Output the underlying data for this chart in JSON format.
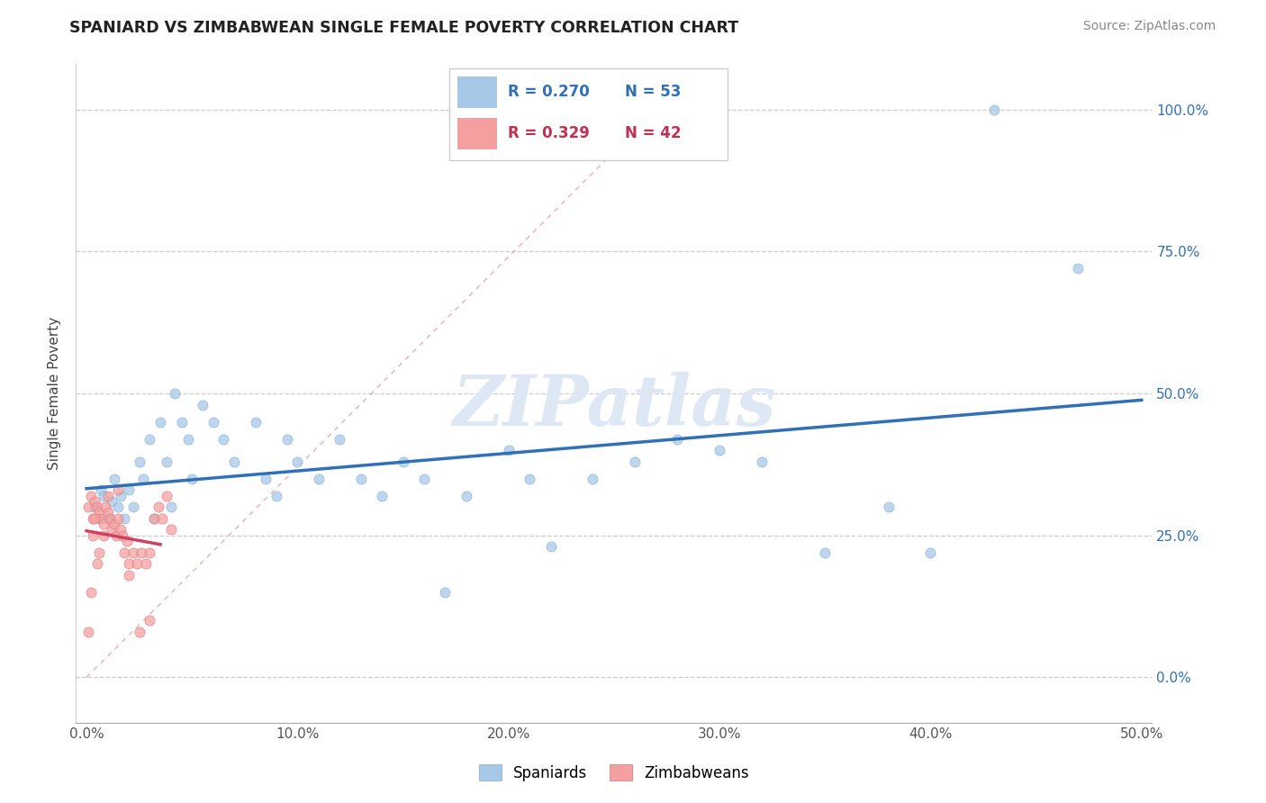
{
  "title": "SPANIARD VS ZIMBABWEAN SINGLE FEMALE POVERTY CORRELATION CHART",
  "source": "Source: ZipAtlas.com",
  "ylabel": "Single Female Poverty",
  "xlim": [
    -0.005,
    0.505
  ],
  "ylim": [
    -0.08,
    1.08
  ],
  "x_ticks": [
    0.0,
    0.1,
    0.2,
    0.3,
    0.4,
    0.5
  ],
  "x_tick_labels": [
    "0.0%",
    "10.0%",
    "20.0%",
    "30.0%",
    "40.0%",
    "50.0%"
  ],
  "y_ticks": [
    0.0,
    0.25,
    0.5,
    0.75,
    1.0
  ],
  "y_tick_labels": [
    "0.0%",
    "25.0%",
    "50.0%",
    "75.0%",
    "100.0%"
  ],
  "legend_r_blue": "R = 0.270",
  "legend_n_blue": "N = 53",
  "legend_r_pink": "R = 0.329",
  "legend_n_pink": "N = 42",
  "blue_color": "#a8c8e8",
  "pink_color": "#f4a0a0",
  "blue_line_color": "#3070b8",
  "pink_line_color": "#d04060",
  "diag_line_color": "#e8a0a0",
  "watermark_color": "#dde8f4",
  "spaniards_x": [
    0.004,
    0.006,
    0.007,
    0.008,
    0.01,
    0.012,
    0.013,
    0.015,
    0.016,
    0.018,
    0.02,
    0.022,
    0.025,
    0.027,
    0.03,
    0.032,
    0.035,
    0.038,
    0.04,
    0.042,
    0.045,
    0.048,
    0.05,
    0.055,
    0.06,
    0.065,
    0.07,
    0.08,
    0.085,
    0.09,
    0.095,
    0.1,
    0.11,
    0.12,
    0.13,
    0.14,
    0.15,
    0.16,
    0.17,
    0.18,
    0.2,
    0.21,
    0.22,
    0.24,
    0.26,
    0.28,
    0.3,
    0.32,
    0.35,
    0.38,
    0.4,
    0.43,
    0.47
  ],
  "spaniards_y": [
    0.3,
    0.28,
    0.33,
    0.32,
    0.28,
    0.31,
    0.35,
    0.3,
    0.32,
    0.28,
    0.33,
    0.3,
    0.38,
    0.35,
    0.42,
    0.28,
    0.45,
    0.38,
    0.3,
    0.5,
    0.45,
    0.42,
    0.35,
    0.48,
    0.45,
    0.42,
    0.38,
    0.45,
    0.35,
    0.32,
    0.42,
    0.38,
    0.35,
    0.42,
    0.35,
    0.32,
    0.38,
    0.35,
    0.15,
    0.32,
    0.4,
    0.35,
    0.23,
    0.35,
    0.38,
    0.42,
    0.4,
    0.38,
    0.22,
    0.3,
    0.22,
    1.0,
    0.72
  ],
  "zimbabweans_x": [
    0.001,
    0.002,
    0.003,
    0.004,
    0.005,
    0.006,
    0.007,
    0.008,
    0.009,
    0.01,
    0.011,
    0.012,
    0.013,
    0.014,
    0.015,
    0.016,
    0.017,
    0.018,
    0.019,
    0.02,
    0.022,
    0.024,
    0.026,
    0.028,
    0.03,
    0.032,
    0.034,
    0.036,
    0.038,
    0.04,
    0.01,
    0.008,
    0.006,
    0.005,
    0.004,
    0.003,
    0.002,
    0.001,
    0.015,
    0.02,
    0.025,
    0.03
  ],
  "zimbabweans_y": [
    0.3,
    0.32,
    0.28,
    0.31,
    0.3,
    0.29,
    0.28,
    0.27,
    0.3,
    0.29,
    0.28,
    0.26,
    0.27,
    0.25,
    0.28,
    0.26,
    0.25,
    0.22,
    0.24,
    0.2,
    0.22,
    0.2,
    0.22,
    0.2,
    0.22,
    0.28,
    0.3,
    0.28,
    0.32,
    0.26,
    0.32,
    0.25,
    0.22,
    0.2,
    0.28,
    0.25,
    0.15,
    0.08,
    0.33,
    0.18,
    0.08,
    0.1
  ]
}
